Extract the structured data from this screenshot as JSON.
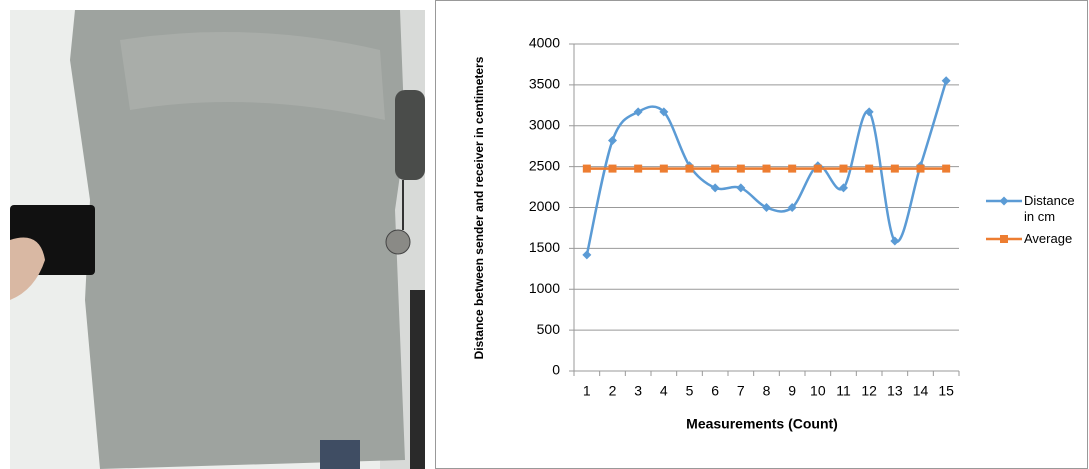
{
  "chart_data": {
    "type": "line",
    "categories": [
      "1",
      "2",
      "3",
      "4",
      "5",
      "6",
      "7",
      "8",
      "9",
      "10",
      "11",
      "12",
      "13",
      "14",
      "15"
    ],
    "series": [
      {
        "name": "Distance in cm",
        "color": "#5b9bd5",
        "marker": "diamond",
        "values": [
          1420,
          2820,
          3170,
          3170,
          2510,
          2240,
          2240,
          2000,
          2000,
          2510,
          2240,
          3170,
          1590,
          2510,
          3550
        ]
      },
      {
        "name": "Average",
        "color": "#ed7d31",
        "marker": "square",
        "values": [
          2476,
          2476,
          2476,
          2476,
          2476,
          2476,
          2476,
          2476,
          2476,
          2476,
          2476,
          2476,
          2476,
          2476,
          2476
        ]
      }
    ],
    "x_label": "Measurements (Count)",
    "y_label": "Distance between sender and receiver in centimeters",
    "ylim": [
      0,
      4000
    ],
    "yticks": [
      0,
      500,
      1000,
      1500,
      2000,
      2500,
      3000,
      3500,
      4000
    ],
    "grid": true,
    "smooth": true,
    "legend": "right"
  }
}
